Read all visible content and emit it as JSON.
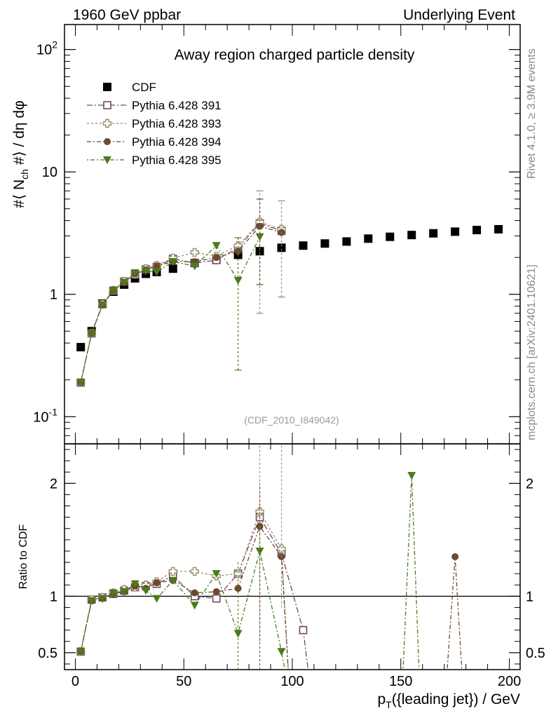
{
  "header": {
    "left": "1960 GeV ppbar",
    "right": "Underlying Event"
  },
  "side_labels": {
    "rivet": "Rivet 4.1.0, ≥ 3.9M events",
    "mcplots": "mcplots.cern.ch [arXiv:2401.10621]"
  },
  "colors": {
    "cdf": "#000000",
    "p391": "#6e4a5e",
    "p393": "#9b8a6a",
    "p394": "#6b4a30",
    "p395": "#4a7a1a"
  },
  "chart_data": [
    {
      "type": "scatter",
      "title": "Away region charged particle density",
      "analysis_tag": "(CDF_2010_I849042)",
      "ylabel": "#⟨ N_ch #⟩ / dη dφ",
      "yscale": "log",
      "ylim": [
        0.06,
        160
      ],
      "xlim": [
        -5,
        205
      ],
      "y_tick_labels": [
        "10^-1",
        "1",
        "10",
        "10^2"
      ],
      "legend": [
        "CDF",
        "Pythia 6.428 391",
        "Pythia 6.428 393",
        "Pythia 6.428 394",
        "Pythia 6.428 395"
      ],
      "series": [
        {
          "name": "CDF",
          "marker": "filled-square",
          "x": [
            2.5,
            7.5,
            12.5,
            17.5,
            22.5,
            27.5,
            32.5,
            37.5,
            45,
            55,
            65,
            75,
            85,
            95,
            105,
            115,
            125,
            135,
            145,
            155,
            165,
            175,
            185,
            195
          ],
          "y": [
            0.37,
            0.5,
            0.84,
            1.05,
            1.2,
            1.35,
            1.47,
            1.52,
            1.62,
            1.8,
            1.92,
            2.1,
            2.25,
            2.4,
            2.5,
            2.6,
            2.7,
            2.85,
            2.95,
            3.05,
            3.15,
            3.25,
            3.35,
            3.4
          ]
        },
        {
          "name": "Pythia 6.428 391",
          "marker": "open-square",
          "x": [
            2.5,
            7.5,
            12.5,
            17.5,
            22.5,
            27.5,
            32.5,
            37.5,
            45,
            55,
            65,
            75,
            85,
            95
          ],
          "y": [
            0.19,
            0.48,
            0.83,
            1.07,
            1.27,
            1.45,
            1.6,
            1.68,
            1.95,
            1.8,
            1.9,
            2.4,
            3.8,
            3.3
          ]
        },
        {
          "name": "Pythia 6.428 393",
          "marker": "open-cross",
          "x": [
            2.5,
            7.5,
            12.5,
            17.5,
            22.5,
            27.5,
            32.5,
            37.5,
            45,
            55,
            65,
            75,
            85,
            95
          ],
          "y": [
            0.19,
            0.48,
            0.83,
            1.08,
            1.28,
            1.46,
            1.62,
            1.72,
            1.98,
            2.2,
            2.05,
            2.5,
            3.9,
            3.4
          ]
        },
        {
          "name": "Pythia 6.428 394",
          "marker": "filled-circle",
          "x": [
            2.5,
            7.5,
            12.5,
            17.5,
            22.5,
            27.5,
            32.5,
            37.5,
            45,
            55,
            65,
            75,
            85,
            95
          ],
          "y": [
            0.19,
            0.48,
            0.82,
            1.07,
            1.25,
            1.47,
            1.58,
            1.7,
            1.85,
            1.85,
            2.0,
            2.25,
            3.6,
            3.2
          ]
        },
        {
          "name": "Pythia 6.428 395",
          "marker": "filled-triangle-down",
          "x": [
            2.5,
            7.5,
            12.5,
            17.5,
            22.5,
            27.5,
            32.5,
            37.5,
            45,
            55,
            65,
            75,
            85
          ],
          "y": [
            0.19,
            0.48,
            0.82,
            1.08,
            1.25,
            1.5,
            1.55,
            1.52,
            1.85,
            1.7,
            2.5,
            1.3,
            2.95
          ]
        }
      ]
    },
    {
      "type": "scatter",
      "ylabel": "Ratio to CDF",
      "ylim": [
        0.35,
        2.35
      ],
      "y_ticks": [
        0.5,
        1,
        2
      ],
      "y_tick_labels": [
        "0.5",
        "1",
        "2"
      ],
      "x_ticks": [
        0,
        50,
        100,
        150,
        200
      ],
      "x_tick_labels": [
        "0",
        "50",
        "100",
        "150",
        "200"
      ],
      "xlabel": "p_T({leading jet}) / GeV",
      "reference_line": 1,
      "series": [
        {
          "name": "Pythia 6.428 391",
          "x": [
            2.5,
            7.5,
            12.5,
            17.5,
            22.5,
            27.5,
            32.5,
            37.5,
            45,
            55,
            65,
            75,
            85,
            95,
            105
          ],
          "y": [
            0.51,
            0.97,
            0.99,
            1.02,
            1.05,
            1.08,
            1.09,
            1.11,
            1.18,
            1.0,
            0.98,
            1.2,
            1.7,
            1.38,
            0.7
          ]
        },
        {
          "name": "Pythia 6.428 393",
          "x": [
            2.5,
            7.5,
            12.5,
            17.5,
            22.5,
            27.5,
            32.5,
            37.5,
            45,
            55,
            65,
            75,
            85,
            95
          ],
          "y": [
            0.51,
            0.97,
            0.99,
            1.03,
            1.06,
            1.08,
            1.1,
            1.13,
            1.22,
            1.22,
            1.18,
            1.2,
            1.75,
            1.42
          ]
        },
        {
          "name": "Pythia 6.428 394",
          "x": [
            2.5,
            7.5,
            12.5,
            17.5,
            22.5,
            27.5,
            32.5,
            37.5,
            45,
            55,
            65,
            75,
            85,
            95,
            175
          ],
          "y": [
            0.51,
            0.96,
            0.98,
            1.02,
            1.04,
            1.09,
            1.07,
            1.12,
            1.14,
            1.03,
            1.04,
            1.07,
            1.62,
            1.35,
            1.35
          ]
        },
        {
          "name": "Pythia 6.428 395",
          "x": [
            2.5,
            7.5,
            12.5,
            17.5,
            22.5,
            27.5,
            32.5,
            37.5,
            45,
            55,
            65,
            75,
            85,
            95,
            155
          ],
          "y": [
            0.51,
            0.96,
            0.98,
            1.03,
            1.04,
            1.11,
            1.05,
            0.98,
            1.14,
            0.92,
            1.2,
            0.67,
            1.4,
            0.51,
            2.07
          ]
        }
      ]
    }
  ]
}
